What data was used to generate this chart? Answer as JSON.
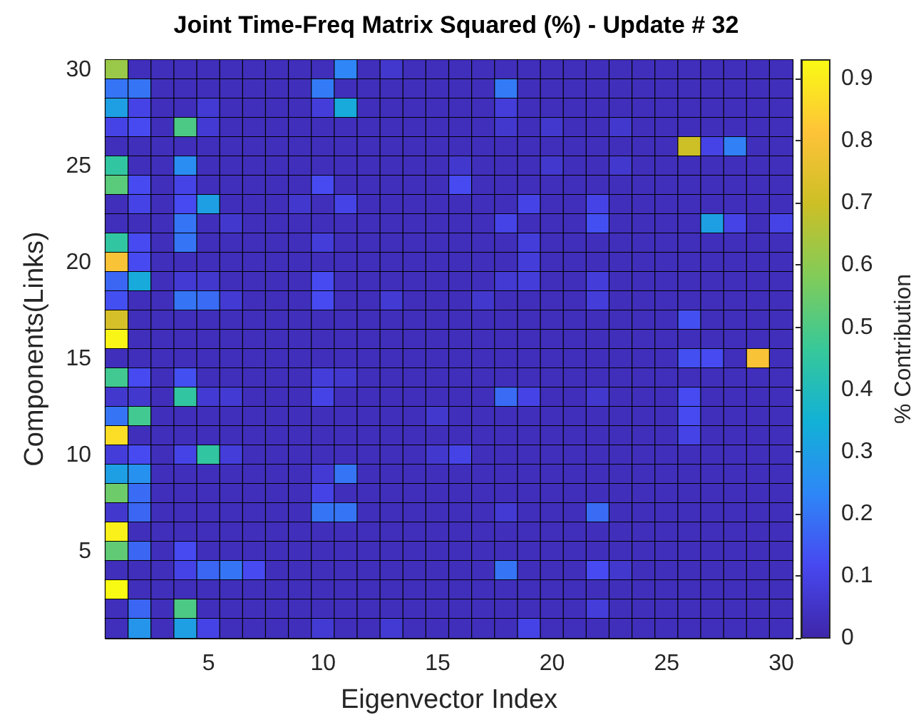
{
  "chart_data": {
    "type": "heatmap",
    "title": "Joint Time-Freq Matrix Squared (%) - Update # 32",
    "xlabel": "Eigenvector Index",
    "ylabel": "Components(Links)",
    "clabel": "% Contribution",
    "categories": [
      null,
      null,
      null,
      null,
      "5",
      null,
      null,
      null,
      null,
      "10",
      null,
      null,
      null,
      null,
      "15",
      null,
      null,
      null,
      null,
      "20",
      null,
      null,
      null,
      null,
      "25",
      null,
      null,
      null,
      null,
      "30"
    ],
    "y_categories": [
      "30",
      null,
      null,
      null,
      null,
      "25",
      null,
      null,
      null,
      null,
      "20",
      null,
      null,
      null,
      null,
      "15",
      null,
      null,
      null,
      null,
      "10",
      null,
      null,
      null,
      null,
      "5",
      null,
      null,
      null,
      null
    ],
    "clim": [
      0,
      0.93
    ],
    "cticks": [
      0,
      0.1,
      0.2,
      0.3,
      0.4,
      0.5,
      0.6,
      0.7,
      0.8,
      0.9
    ],
    "cells": [
      [
        0.62,
        0.03,
        0.03,
        0.03,
        0.03,
        0.03,
        0.03,
        0.03,
        0.03,
        0.03,
        0.23,
        0.03,
        0.06,
        0.03,
        0.03,
        0.03,
        0.03,
        0.03,
        0.03,
        0.03,
        0.03,
        0.03,
        0.03,
        0.03,
        0.03,
        0.03,
        0.03,
        0.03,
        0.03,
        0.03
      ],
      [
        0.2,
        0.2,
        0.03,
        0.03,
        0.03,
        0.03,
        0.03,
        0.03,
        0.03,
        0.21,
        0.03,
        0.03,
        0.03,
        0.03,
        0.03,
        0.03,
        0.03,
        0.21,
        0.03,
        0.03,
        0.03,
        0.03,
        0.03,
        0.03,
        0.03,
        0.03,
        0.03,
        0.03,
        0.03,
        0.03
      ],
      [
        0.3,
        0.1,
        0.03,
        0.03,
        0.07,
        0.03,
        0.03,
        0.03,
        0.03,
        0.08,
        0.33,
        0.03,
        0.03,
        0.03,
        0.03,
        0.03,
        0.03,
        0.08,
        0.03,
        0.03,
        0.03,
        0.03,
        0.03,
        0.03,
        0.03,
        0.03,
        0.03,
        0.03,
        0.03,
        0.03
      ],
      [
        0.1,
        0.12,
        0.03,
        0.5,
        0.07,
        0.03,
        0.03,
        0.03,
        0.03,
        0.03,
        0.03,
        0.03,
        0.03,
        0.03,
        0.03,
        0.03,
        0.03,
        0.06,
        0.03,
        0.06,
        0.03,
        0.03,
        0.06,
        0.03,
        0.03,
        0.03,
        0.03,
        0.03,
        0.03,
        0.03
      ],
      [
        0.03,
        0.03,
        0.03,
        0.03,
        0.03,
        0.03,
        0.03,
        0.03,
        0.03,
        0.03,
        0.03,
        0.03,
        0.03,
        0.03,
        0.03,
        0.03,
        0.03,
        0.03,
        0.03,
        0.03,
        0.03,
        0.03,
        0.03,
        0.03,
        0.03,
        0.7,
        0.1,
        0.22,
        0.03,
        0.03
      ],
      [
        0.45,
        0.03,
        0.03,
        0.25,
        0.03,
        0.03,
        0.03,
        0.03,
        0.03,
        0.03,
        0.03,
        0.03,
        0.03,
        0.03,
        0.03,
        0.06,
        0.03,
        0.03,
        0.03,
        0.06,
        0.03,
        0.03,
        0.06,
        0.03,
        0.03,
        0.03,
        0.03,
        0.03,
        0.03,
        0.03
      ],
      [
        0.52,
        0.12,
        0.03,
        0.1,
        0.03,
        0.03,
        0.03,
        0.03,
        0.03,
        0.12,
        0.03,
        0.03,
        0.03,
        0.03,
        0.03,
        0.12,
        0.03,
        0.03,
        0.03,
        0.03,
        0.03,
        0.03,
        0.03,
        0.03,
        0.03,
        0.03,
        0.03,
        0.03,
        0.03,
        0.03
      ],
      [
        0.03,
        0.1,
        0.03,
        0.12,
        0.3,
        0.03,
        0.03,
        0.03,
        0.06,
        0.03,
        0.1,
        0.03,
        0.03,
        0.03,
        0.03,
        0.03,
        0.03,
        0.03,
        0.1,
        0.03,
        0.03,
        0.1,
        0.03,
        0.03,
        0.03,
        0.03,
        0.03,
        0.03,
        0.03,
        0.03
      ],
      [
        0.03,
        0.03,
        0.03,
        0.2,
        0.03,
        0.06,
        0.03,
        0.03,
        0.03,
        0.03,
        0.03,
        0.03,
        0.03,
        0.03,
        0.03,
        0.03,
        0.03,
        0.1,
        0.03,
        0.03,
        0.03,
        0.13,
        0.03,
        0.03,
        0.03,
        0.03,
        0.3,
        0.1,
        0.03,
        0.1
      ],
      [
        0.45,
        0.12,
        0.03,
        0.2,
        0.03,
        0.03,
        0.03,
        0.03,
        0.03,
        0.08,
        0.03,
        0.03,
        0.03,
        0.03,
        0.03,
        0.03,
        0.03,
        0.03,
        0.08,
        0.03,
        0.03,
        0.03,
        0.03,
        0.03,
        0.03,
        0.03,
        0.03,
        0.03,
        0.03,
        0.03
      ],
      [
        0.8,
        0.12,
        0.03,
        0.03,
        0.03,
        0.03,
        0.03,
        0.03,
        0.03,
        0.03,
        0.03,
        0.03,
        0.03,
        0.03,
        0.03,
        0.03,
        0.03,
        0.03,
        0.08,
        0.03,
        0.03,
        0.03,
        0.03,
        0.03,
        0.03,
        0.03,
        0.03,
        0.03,
        0.03,
        0.03
      ],
      [
        0.17,
        0.33,
        0.03,
        0.07,
        0.06,
        0.03,
        0.03,
        0.03,
        0.03,
        0.12,
        0.03,
        0.03,
        0.03,
        0.03,
        0.03,
        0.03,
        0.03,
        0.07,
        0.08,
        0.03,
        0.03,
        0.08,
        0.03,
        0.03,
        0.03,
        0.03,
        0.03,
        0.03,
        0.03,
        0.03
      ],
      [
        0.13,
        0.03,
        0.03,
        0.2,
        0.18,
        0.07,
        0.03,
        0.03,
        0.03,
        0.12,
        0.03,
        0.03,
        0.07,
        0.03,
        0.03,
        0.03,
        0.06,
        0.03,
        0.03,
        0.03,
        0.03,
        0.08,
        0.03,
        0.03,
        0.03,
        0.03,
        0.03,
        0.03,
        0.03,
        0.03
      ],
      [
        0.72,
        0.03,
        0.03,
        0.03,
        0.03,
        0.03,
        0.03,
        0.03,
        0.03,
        0.03,
        0.03,
        0.03,
        0.03,
        0.03,
        0.03,
        0.03,
        0.03,
        0.03,
        0.03,
        0.03,
        0.03,
        0.03,
        0.03,
        0.03,
        0.03,
        0.13,
        0.03,
        0.03,
        0.03,
        0.03
      ],
      [
        0.92,
        0.03,
        0.03,
        0.03,
        0.03,
        0.03,
        0.03,
        0.03,
        0.03,
        0.03,
        0.03,
        0.03,
        0.03,
        0.03,
        0.03,
        0.03,
        0.03,
        0.03,
        0.03,
        0.03,
        0.03,
        0.03,
        0.03,
        0.03,
        0.03,
        0.03,
        0.03,
        0.03,
        0.03,
        0.03
      ],
      [
        0.03,
        0.03,
        0.03,
        0.03,
        0.03,
        0.03,
        0.03,
        0.03,
        0.03,
        0.03,
        0.03,
        0.03,
        0.03,
        0.03,
        0.03,
        0.03,
        0.03,
        0.03,
        0.03,
        0.03,
        0.03,
        0.03,
        0.03,
        0.03,
        0.03,
        0.13,
        0.12,
        0.03,
        0.8,
        0.03
      ],
      [
        0.48,
        0.12,
        0.03,
        0.13,
        0.03,
        0.03,
        0.03,
        0.03,
        0.03,
        0.08,
        0.06,
        0.03,
        0.03,
        0.03,
        0.03,
        0.03,
        0.03,
        0.03,
        0.03,
        0.03,
        0.03,
        0.03,
        0.03,
        0.03,
        0.03,
        0.03,
        0.03,
        0.03,
        0.03,
        0.03
      ],
      [
        0.06,
        0.06,
        0.03,
        0.45,
        0.07,
        0.07,
        0.03,
        0.03,
        0.03,
        0.1,
        0.03,
        0.03,
        0.03,
        0.03,
        0.03,
        0.03,
        0.03,
        0.18,
        0.1,
        0.03,
        0.03,
        0.06,
        0.03,
        0.03,
        0.03,
        0.12,
        0.03,
        0.03,
        0.03,
        0.03
      ],
      [
        0.2,
        0.48,
        0.03,
        0.03,
        0.03,
        0.03,
        0.03,
        0.03,
        0.03,
        0.03,
        0.03,
        0.03,
        0.03,
        0.03,
        0.06,
        0.03,
        0.03,
        0.03,
        0.03,
        0.03,
        0.03,
        0.03,
        0.03,
        0.03,
        0.03,
        0.12,
        0.03,
        0.03,
        0.03,
        0.03
      ],
      [
        0.87,
        0.03,
        0.03,
        0.03,
        0.03,
        0.03,
        0.03,
        0.03,
        0.03,
        0.03,
        0.03,
        0.03,
        0.03,
        0.03,
        0.03,
        0.03,
        0.03,
        0.03,
        0.03,
        0.03,
        0.03,
        0.03,
        0.03,
        0.03,
        0.03,
        0.1,
        0.03,
        0.03,
        0.03,
        0.03
      ],
      [
        0.08,
        0.12,
        0.03,
        0.1,
        0.45,
        0.08,
        0.03,
        0.03,
        0.03,
        0.03,
        0.03,
        0.03,
        0.03,
        0.03,
        0.06,
        0.1,
        0.03,
        0.03,
        0.03,
        0.03,
        0.03,
        0.03,
        0.03,
        0.03,
        0.03,
        0.03,
        0.03,
        0.03,
        0.03,
        0.03
      ],
      [
        0.3,
        0.26,
        0.03,
        0.03,
        0.03,
        0.03,
        0.03,
        0.03,
        0.03,
        0.07,
        0.2,
        0.03,
        0.03,
        0.03,
        0.03,
        0.03,
        0.03,
        0.03,
        0.03,
        0.03,
        0.03,
        0.03,
        0.03,
        0.03,
        0.03,
        0.03,
        0.03,
        0.03,
        0.03,
        0.03
      ],
      [
        0.55,
        0.18,
        0.03,
        0.03,
        0.03,
        0.03,
        0.03,
        0.03,
        0.03,
        0.1,
        0.03,
        0.03,
        0.03,
        0.03,
        0.03,
        0.03,
        0.03,
        0.03,
        0.03,
        0.03,
        0.03,
        0.03,
        0.03,
        0.03,
        0.03,
        0.03,
        0.03,
        0.03,
        0.03,
        0.03
      ],
      [
        0.06,
        0.17,
        0.03,
        0.03,
        0.03,
        0.03,
        0.03,
        0.03,
        0.03,
        0.2,
        0.2,
        0.03,
        0.03,
        0.03,
        0.03,
        0.03,
        0.03,
        0.07,
        0.03,
        0.03,
        0.03,
        0.18,
        0.03,
        0.03,
        0.03,
        0.03,
        0.03,
        0.03,
        0.03,
        0.03
      ],
      [
        0.91,
        0.03,
        0.03,
        0.03,
        0.03,
        0.03,
        0.03,
        0.03,
        0.03,
        0.03,
        0.03,
        0.03,
        0.03,
        0.03,
        0.03,
        0.03,
        0.03,
        0.03,
        0.03,
        0.03,
        0.03,
        0.03,
        0.03,
        0.03,
        0.03,
        0.03,
        0.03,
        0.03,
        0.03,
        0.03
      ],
      [
        0.53,
        0.17,
        0.03,
        0.12,
        0.03,
        0.03,
        0.03,
        0.03,
        0.03,
        0.03,
        0.03,
        0.03,
        0.03,
        0.03,
        0.03,
        0.03,
        0.03,
        0.03,
        0.03,
        0.03,
        0.03,
        0.03,
        0.03,
        0.03,
        0.03,
        0.03,
        0.03,
        0.03,
        0.03,
        0.03
      ],
      [
        0.03,
        0.03,
        0.03,
        0.1,
        0.17,
        0.2,
        0.12,
        0.03,
        0.03,
        0.03,
        0.03,
        0.03,
        0.03,
        0.03,
        0.03,
        0.03,
        0.03,
        0.2,
        0.03,
        0.03,
        0.03,
        0.12,
        0.06,
        0.03,
        0.03,
        0.03,
        0.03,
        0.03,
        0.03,
        0.03
      ],
      [
        0.93,
        0.03,
        0.03,
        0.03,
        0.03,
        0.03,
        0.03,
        0.03,
        0.03,
        0.03,
        0.03,
        0.03,
        0.03,
        0.03,
        0.03,
        0.03,
        0.03,
        0.03,
        0.03,
        0.03,
        0.03,
        0.03,
        0.03,
        0.03,
        0.03,
        0.03,
        0.03,
        0.03,
        0.03,
        0.03
      ],
      [
        0.03,
        0.17,
        0.03,
        0.5,
        0.03,
        0.03,
        0.03,
        0.03,
        0.03,
        0.03,
        0.03,
        0.03,
        0.03,
        0.03,
        0.03,
        0.03,
        0.03,
        0.03,
        0.03,
        0.03,
        0.03,
        0.08,
        0.03,
        0.03,
        0.03,
        0.03,
        0.03,
        0.03,
        0.03,
        0.03
      ],
      [
        0.03,
        0.27,
        0.03,
        0.3,
        0.1,
        0.03,
        0.03,
        0.03,
        0.03,
        0.07,
        0.03,
        0.03,
        0.07,
        0.03,
        0.03,
        0.03,
        0.03,
        0.03,
        0.1,
        0.03,
        0.03,
        0.03,
        0.03,
        0.03,
        0.03,
        0.03,
        0.03,
        0.03,
        0.03,
        0.03
      ]
    ]
  }
}
